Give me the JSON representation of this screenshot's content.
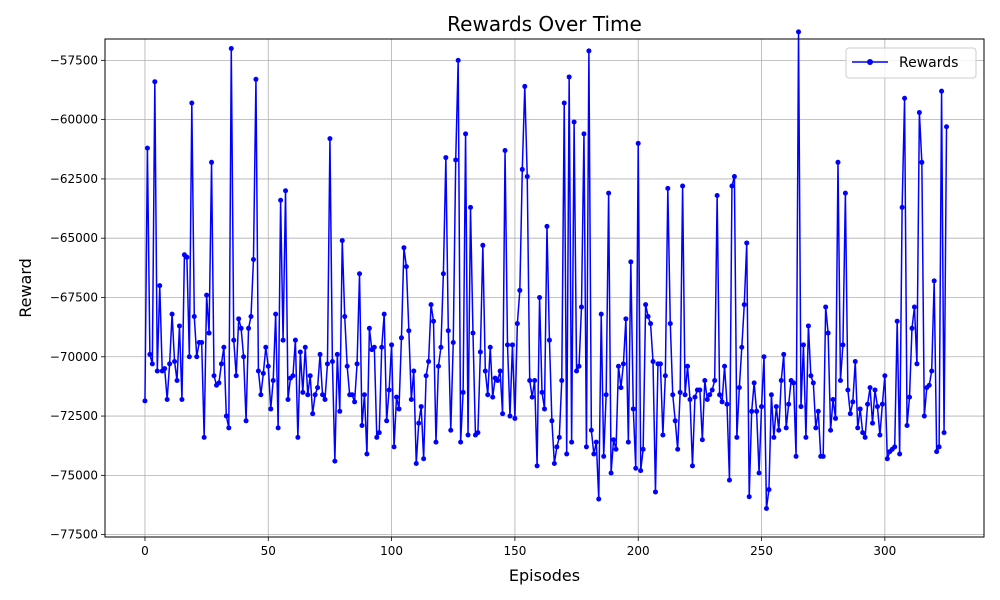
{
  "chart_data": {
    "type": "line",
    "title": "Rewards Over Time",
    "xlabel": "Episodes",
    "ylabel": "Reward",
    "xlim": [
      -16.2,
      340.2
    ],
    "ylim": [
      -77600,
      -56600
    ],
    "x_ticks": [
      0,
      50,
      100,
      150,
      200,
      250,
      300
    ],
    "y_ticks": [
      -77500,
      -75000,
      -72500,
      -70000,
      -67500,
      -65000,
      -62500,
      -60000,
      -57500
    ],
    "x_tick_labels": [
      "0",
      "50",
      "100",
      "150",
      "200",
      "250",
      "300"
    ],
    "y_tick_labels": [
      "−77500",
      "−75000",
      "−72500",
      "−70000",
      "−67500",
      "−65000",
      "−62500",
      "−60000",
      "−57500"
    ],
    "grid": true,
    "legend": {
      "position": "top-right",
      "entries": [
        "Rewards"
      ]
    },
    "series": [
      {
        "name": "Rewards",
        "color": "#0000ff",
        "marker": "circle",
        "x_start": 0,
        "x_step": 1,
        "values": [
          -71860,
          -61200,
          -69900,
          -70300,
          -58400,
          -70600,
          -67000,
          -70600,
          -70500,
          -71800,
          -70300,
          -68200,
          -70200,
          -71000,
          -68700,
          -71800,
          -65700,
          -65800,
          -70000,
          -59300,
          -68300,
          -70000,
          -69400,
          -69400,
          -73400,
          -67400,
          -69000,
          -61800,
          -70800,
          -71200,
          -71100,
          -70300,
          -69600,
          -72500,
          -73000,
          -57000,
          -69300,
          -70800,
          -68400,
          -68800,
          -70000,
          -72700,
          -68800,
          -68300,
          -65900,
          -58300,
          -70600,
          -71600,
          -70700,
          -69600,
          -70400,
          -72200,
          -71000,
          -68200,
          -73000,
          -63400,
          -69300,
          -63000,
          -71800,
          -70900,
          -70800,
          -69300,
          -73400,
          -69800,
          -71500,
          -69600,
          -71600,
          -70800,
          -72400,
          -71600,
          -71300,
          -69900,
          -71600,
          -71800,
          -70300,
          -60800,
          -70200,
          -74400,
          -69900,
          -72300,
          -65100,
          -68300,
          -70400,
          -71600,
          -71600,
          -71900,
          -70300,
          -66500,
          -72900,
          -71600,
          -74100,
          -68800,
          -69700,
          -69600,
          -73400,
          -73200,
          -69600,
          -68200,
          -72700,
          -71400,
          -69500,
          -73800,
          -71700,
          -72200,
          -69200,
          -65400,
          -66200,
          -68900,
          -71800,
          -70600,
          -74500,
          -72800,
          -72100,
          -74300,
          -70800,
          -70200,
          -67800,
          -68500,
          -73600,
          -70400,
          -69600,
          -66500,
          -61600,
          -68900,
          -73100,
          -69400,
          -61700,
          -57500,
          -73600,
          -71500,
          -60600,
          -73300,
          -63700,
          -69000,
          -73300,
          -73200,
          -69800,
          -65300,
          -70600,
          -71600,
          -69600,
          -71700,
          -70900,
          -71000,
          -70600,
          -72400,
          -61300,
          -69500,
          -72500,
          -69500,
          -72600,
          -68600,
          -67200,
          -62100,
          -58600,
          -62400,
          -71000,
          -71700,
          -71000,
          -74600,
          -67500,
          -71500,
          -72200,
          -64500,
          -69300,
          -72700,
          -74500,
          -73800,
          -73400,
          -71000,
          -59300,
          -74100,
          -58200,
          -73600,
          -60100,
          -70600,
          -70400,
          -67900,
          -60600,
          -73800,
          -57100,
          -73100,
          -74100,
          -73600,
          -76000,
          -68200,
          -74200,
          -71600,
          -63100,
          -74900,
          -73500,
          -73900,
          -70400,
          -71300,
          -70300,
          -68400,
          -73600,
          -66000,
          -72200,
          -74700,
          -61000,
          -74800,
          -73900,
          -67800,
          -68300,
          -68600,
          -70200,
          -75700,
          -70300,
          -70300,
          -73300,
          -70800,
          -62900,
          -68600,
          -71600,
          -72700,
          -73900,
          -71500,
          -62800,
          -71600,
          -70400,
          -71800,
          -74600,
          -71700,
          -71400,
          -71400,
          -73500,
          -71000,
          -71800,
          -71600,
          -71400,
          -71000,
          -63200,
          -71600,
          -71900,
          -70400,
          -72000,
          -75200,
          -62800,
          -62400,
          -73400,
          -71300,
          -69600,
          -67800,
          -65200,
          -75900,
          -72300,
          -71100,
          -72300,
          -74900,
          -72100,
          -70000,
          -76400,
          -75600,
          -71600,
          -73400,
          -72100,
          -73100,
          -71000,
          -69900,
          -73000,
          -72000,
          -71000,
          -71100,
          -74200,
          -56300,
          -72100,
          -69500,
          -73400,
          -68700,
          -70800,
          -71100,
          -73000,
          -72300,
          -74200,
          -74200,
          -67900,
          -69000,
          -73100,
          -71800,
          -72600,
          -61800,
          -71000,
          -69500,
          -63100,
          -71400,
          -72400,
          -71900,
          -70200,
          -73000,
          -72200,
          -73200,
          -73400,
          -72000,
          -71300,
          -72800,
          -71400,
          -72100,
          -73300,
          -72000,
          -70800,
          -74300,
          -74000,
          -73900,
          -73800,
          -68500,
          -74100,
          -63700,
          -59100,
          -72900,
          -71700,
          -68800,
          -67900,
          -70300,
          -59700,
          -61800,
          -72500,
          -71300,
          -71200,
          -70600,
          -66800,
          -74000,
          -73800,
          -58800,
          -73200,
          -60300
        ]
      }
    ]
  }
}
